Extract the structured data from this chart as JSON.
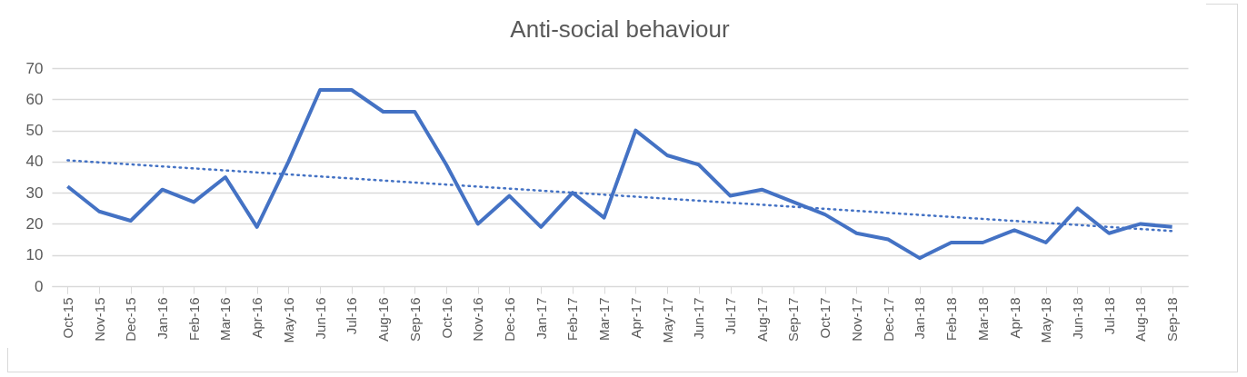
{
  "chart_data": {
    "type": "line",
    "title": "Anti-social behaviour",
    "categories": [
      "Oct-15",
      "Nov-15",
      "Dec-15",
      "Jan-16",
      "Feb-16",
      "Mar-16",
      "Apr-16",
      "May-16",
      "Jun-16",
      "Jul-16",
      "Aug-16",
      "Sep-16",
      "Oct-16",
      "Nov-16",
      "Dec-16",
      "Jan-17",
      "Feb-17",
      "Mar-17",
      "Apr-17",
      "May-17",
      "Jun-17",
      "Jul-17",
      "Aug-17",
      "Sep-17",
      "Oct-17",
      "Nov-17",
      "Dec-17",
      "Jan-18",
      "Feb-18",
      "Mar-18",
      "Apr-18",
      "May-18",
      "Jun-18",
      "Jul-18",
      "Aug-18",
      "Sep-18"
    ],
    "series": [
      {
        "color": "#4472c4",
        "line_style": "solid",
        "values": [
          32,
          24,
          21,
          31,
          27,
          35,
          19,
          40,
          63,
          63,
          56,
          56,
          39,
          20,
          29,
          19,
          30,
          22,
          50,
          42,
          39,
          29,
          31,
          27,
          23,
          17,
          15,
          9,
          14,
          14,
          18,
          14,
          25,
          17,
          20,
          19
        ]
      },
      {
        "type": "line",
        "color": "#4472c4",
        "line_style": "dotted",
        "x": [
          "Oct-15",
          "Sep-18"
        ],
        "values": [
          40.4,
          17.7
        ]
      }
    ],
    "ylim": [
      0,
      70
    ],
    "yticks": [
      0,
      10,
      20,
      30,
      40,
      50,
      60,
      70
    ],
    "grid": "y",
    "marker": "none"
  }
}
